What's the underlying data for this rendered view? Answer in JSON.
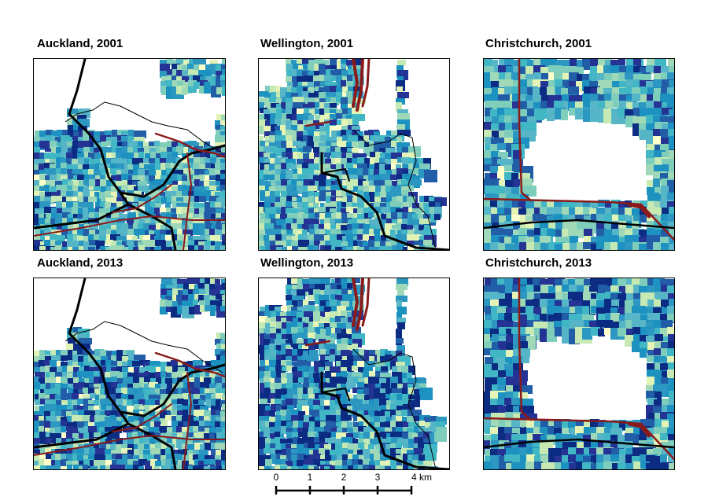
{
  "panels": [
    {
      "title": "Auckland, 2001",
      "city": "auckland",
      "year": "2001"
    },
    {
      "title": "Wellington, 2001",
      "city": "wellington",
      "year": "2001"
    },
    {
      "title": "Christchurch, 2001",
      "city": "christchurch",
      "year": "2001"
    },
    {
      "title": "Auckland, 2013",
      "city": "auckland",
      "year": "2013"
    },
    {
      "title": "Wellington, 2013",
      "city": "wellington",
      "year": "2013"
    },
    {
      "title": "Christchurch, 2013",
      "city": "christchurch",
      "year": "2013"
    }
  ],
  "scale_bar": {
    "ticks": [
      "0",
      "1",
      "2",
      "3",
      "4 km"
    ]
  },
  "colors": {
    "choropleth_ramp": [
      "#ffffcc",
      "#e4f3b6",
      "#c7e9b4",
      "#9fd9b7",
      "#7fcdbb",
      "#56b6c7",
      "#41b6c4",
      "#2c97c0",
      "#1d91c0",
      "#225ea8",
      "#253494",
      "#0c2c84"
    ],
    "road_major": "#000000",
    "road_rail": "#8b1a1a",
    "coastline": "#000000"
  }
}
